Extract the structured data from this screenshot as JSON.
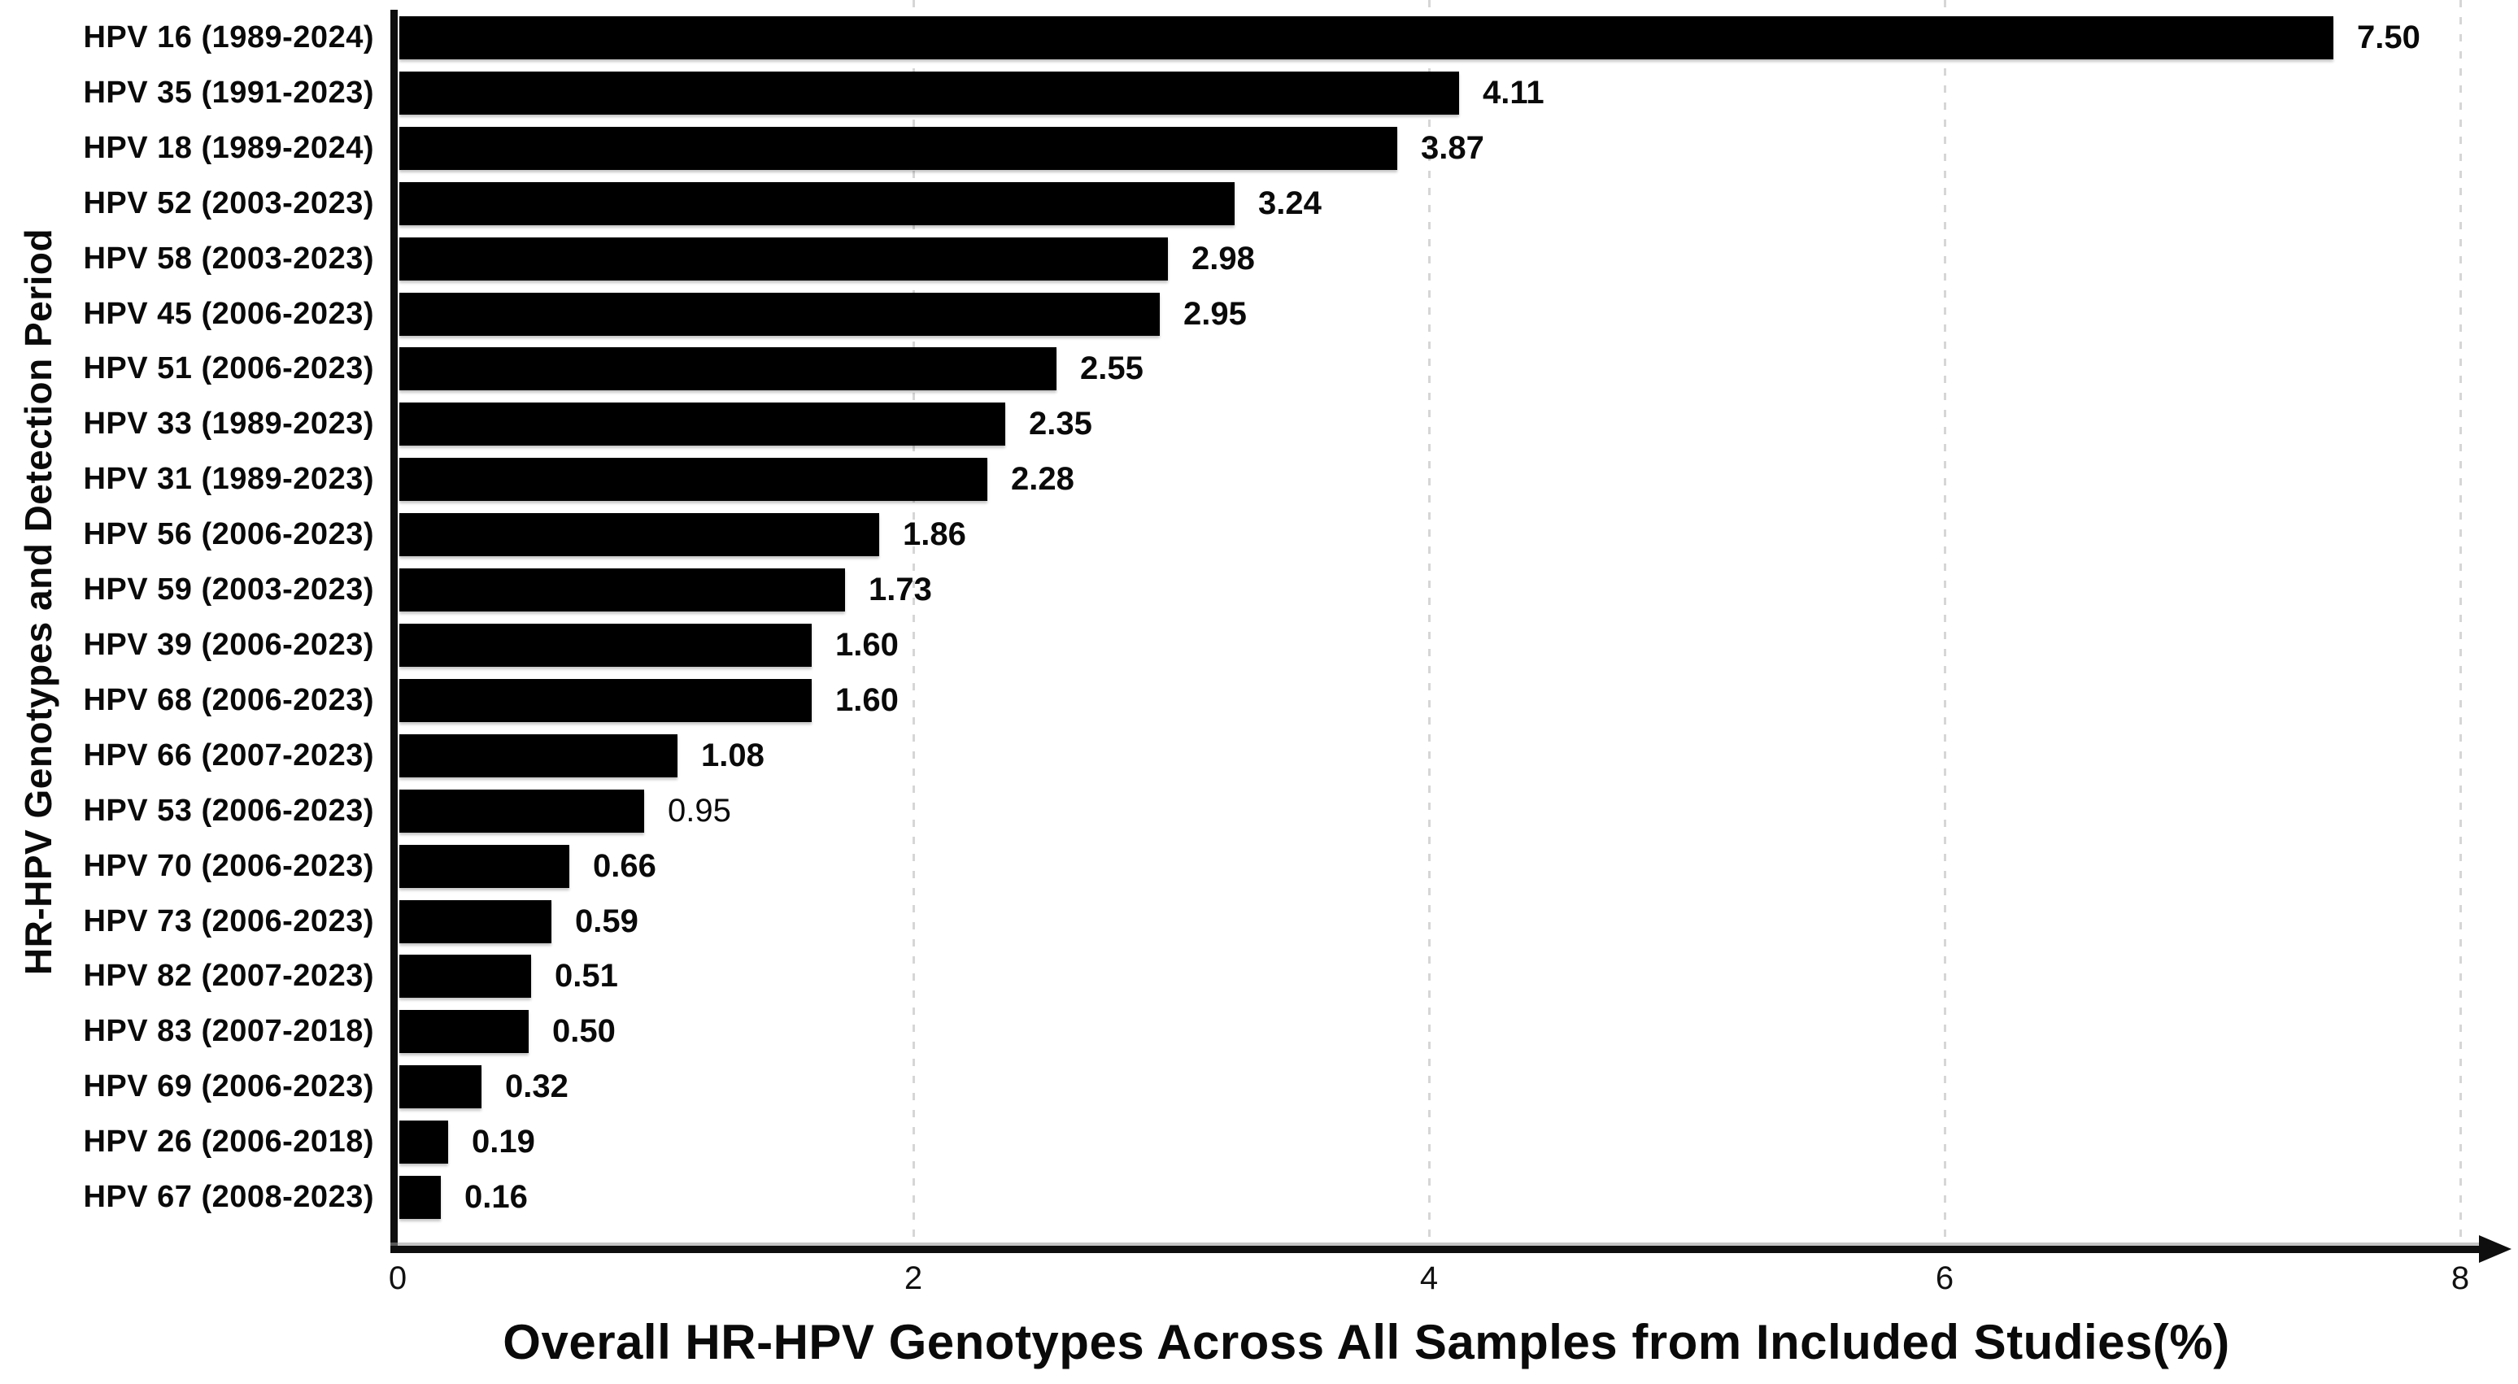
{
  "chart_data": {
    "type": "bar",
    "orientation": "horizontal",
    "title": "",
    "xlabel": "Overall HR-HPV Genotypes Across All Samples from Included Studies(%)",
    "ylabel": "HR-HPV Genotypes and Detection Period",
    "xlim": [
      0,
      8
    ],
    "xticks": [
      0,
      2,
      4,
      6,
      8
    ],
    "xtick_labels": [
      "0",
      "2",
      "4",
      "6",
      "8"
    ],
    "grid": "vertical-dashed-at-ticks",
    "legend": "none",
    "bar_color": "#000000",
    "background_color": "#ffffff",
    "gridline_color": "#d6d6d6",
    "categories": [
      "HPV 16 (1989-2024)",
      "HPV 35 (1991-2023)",
      "HPV 18 (1989-2024)",
      "HPV 52 (2003-2023)",
      "HPV 58 (2003-2023)",
      "HPV 45 (2006-2023)",
      "HPV 51 (2006-2023)",
      "HPV 33 (1989-2023)",
      "HPV 31 (1989-2023)",
      "HPV 56 (2006-2023)",
      "HPV 59 (2003-2023)",
      "HPV 39 (2006-2023)",
      "HPV 68 (2006-2023)",
      "HPV 66 (2007-2023)",
      "HPV 53 (2006-2023)",
      "HPV 70 (2006-2023)",
      "HPV 73 (2006-2023)",
      "HPV 82 (2007-2023)",
      "HPV 83 (2007-2018)",
      "HPV 69 (2006-2023)",
      "HPV 26 (2006-2018)",
      "HPV 67 (2008-2023)"
    ],
    "values": [
      7.5,
      4.11,
      3.87,
      3.24,
      2.98,
      2.95,
      2.55,
      2.35,
      2.28,
      1.86,
      1.73,
      1.6,
      1.6,
      1.08,
      0.95,
      0.66,
      0.59,
      0.51,
      0.5,
      0.32,
      0.19,
      0.16
    ],
    "value_labels": [
      "7.50",
      "4.11",
      "3.87",
      "3.24",
      "2.98",
      "2.95",
      "2.55",
      "2.35",
      "2.28",
      "1.86",
      "1.73",
      "1.60",
      "1.60",
      "1.08",
      "0.95",
      "0.66",
      "0.59",
      "0.51",
      "0.50",
      "0.32",
      "0.19",
      "0.16"
    ],
    "value_label_bold": [
      true,
      true,
      true,
      true,
      true,
      true,
      true,
      true,
      true,
      true,
      true,
      true,
      true,
      true,
      false,
      true,
      true,
      true,
      true,
      true,
      true,
      true
    ]
  }
}
